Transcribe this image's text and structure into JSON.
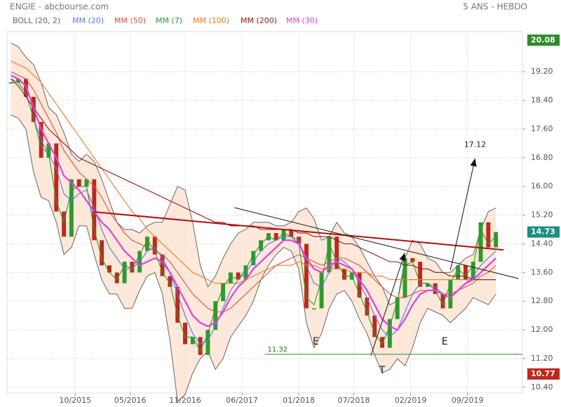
{
  "chart_data": {
    "type": "line",
    "title": "ENGIE - abcbourse.com",
    "subtitle": "5 ANS - HEBDO",
    "xlim": [
      -2,
      270
    ],
    "ylim": [
      10.24,
      20.32
    ],
    "xticks": [
      {
        "value": 34,
        "label": "10/2015"
      },
      {
        "value": 63,
        "label": "05/2016"
      },
      {
        "value": 92,
        "label": "11/2016"
      },
      {
        "value": 122,
        "label": "06/2017"
      },
      {
        "value": 152,
        "label": "01/2018"
      },
      {
        "value": 181,
        "label": "07/2018"
      },
      {
        "value": 211,
        "label": "02/2019"
      },
      {
        "value": 241,
        "label": "09/2019"
      }
    ],
    "yticks": [
      {
        "value": 10.4,
        "label": "10.40"
      },
      {
        "value": 11.2,
        "label": "11.20"
      },
      {
        "value": 12,
        "label": "12.00"
      },
      {
        "value": 12.8,
        "label": "12.80"
      },
      {
        "value": 13.6,
        "label": "13.60"
      },
      {
        "value": 14.4,
        "label": "14.40"
      },
      {
        "value": 15.2,
        "label": "15.20"
      },
      {
        "value": 16,
        "label": "16.00"
      },
      {
        "value": 16.8,
        "label": "16.80"
      },
      {
        "value": 17.6,
        "label": "17.60"
      },
      {
        "value": 18.4,
        "label": "18.40"
      },
      {
        "value": 19.2,
        "label": "19.20"
      }
    ],
    "grid": true,
    "x": [
      0,
      4,
      8,
      12,
      16,
      20,
      24,
      28,
      32,
      36,
      40,
      44,
      48,
      52,
      56,
      60,
      64,
      68,
      72,
      76,
      80,
      84,
      88,
      92,
      96,
      100,
      104,
      108,
      112,
      116,
      120,
      124,
      128,
      132,
      136,
      140,
      144,
      148,
      152,
      156,
      160,
      164,
      168,
      172,
      176,
      180,
      184,
      188,
      192,
      196,
      200,
      204,
      208,
      212,
      216,
      220,
      224,
      228,
      232,
      236,
      240,
      244,
      248,
      252,
      256
    ],
    "price": {
      "up_color": "#2e9a2e",
      "down_color": "#c0281e",
      "values": [
        18.9,
        19.0,
        18.5,
        17.8,
        16.8,
        17.2,
        15.3,
        14.6,
        16.2,
        16.0,
        16.2,
        14.5,
        13.8,
        13.6,
        13.3,
        13.9,
        13.6,
        14.2,
        14.6,
        14.1,
        13.5,
        13.2,
        12.2,
        11.6,
        11.8,
        11.3,
        12.0,
        12.8,
        13.3,
        13.6,
        13.4,
        13.8,
        14.2,
        14.5,
        14.7,
        14.5,
        14.8,
        14.6,
        14.4,
        12.6,
        12.6,
        13.6,
        14.6,
        13.7,
        13.4,
        13.6,
        12.9,
        12.4,
        11.8,
        11.5,
        12.3,
        12.9,
        14.0,
        13.9,
        13.2,
        13.3,
        13.0,
        12.6,
        13.4,
        13.8,
        13.4,
        13.9,
        15.0,
        14.3,
        14.73
      ]
    },
    "bollinger": {
      "name": "BOLL (20, 2)",
      "color": "#666666",
      "fill": "#fde2cf",
      "upper": [
        20.0,
        19.9,
        19.6,
        19.4,
        18.9,
        18.2,
        18.0,
        17.5,
        16.9,
        16.7,
        16.9,
        16.7,
        16.2,
        15.6,
        15.0,
        14.8,
        14.8,
        14.7,
        14.9,
        15.0,
        15.0,
        15.5,
        16.0,
        15.9,
        15.0,
        13.8,
        13.2,
        13.5,
        14.0,
        14.4,
        14.7,
        14.8,
        15.0,
        15.0,
        15.0,
        14.9,
        14.9,
        15.0,
        15.3,
        15.4,
        15.1,
        14.5,
        14.6,
        15.0,
        14.7,
        14.6,
        14.3,
        13.9,
        13.5,
        13.2,
        12.7,
        12.8,
        14.0,
        14.5,
        14.4,
        14.0,
        13.9,
        13.6,
        13.6,
        13.8,
        14.0,
        14.1,
        14.8,
        15.3,
        15.4
      ],
      "lower": [
        18.0,
        17.9,
        17.6,
        16.4,
        15.7,
        15.6,
        15.0,
        14.1,
        14.3,
        14.9,
        14.9,
        14.1,
        13.4,
        13.0,
        13.0,
        12.6,
        12.6,
        13.1,
        13.5,
        13.6,
        13.0,
        11.7,
        10.0,
        10.2,
        10.8,
        11.2,
        11.4,
        10.9,
        11.2,
        11.8,
        12.1,
        12.4,
        12.8,
        13.4,
        13.8,
        14.1,
        14.3,
        14.2,
        13.7,
        12.2,
        11.5,
        11.9,
        12.6,
        13.0,
        13.1,
        12.8,
        12.3,
        11.9,
        11.3,
        10.8,
        10.9,
        11.2,
        11.0,
        11.5,
        12.2,
        12.6,
        12.5,
        12.4,
        12.2,
        12.4,
        12.6,
        12.9,
        12.8,
        12.7,
        13.0
      ]
    },
    "series": [
      {
        "name": "MM (20)",
        "color": "#4a7fe0",
        "values": [
          19.0,
          18.9,
          18.6,
          17.9,
          17.3,
          16.9,
          16.5,
          15.8,
          15.6,
          15.8,
          15.9,
          15.4,
          14.8,
          14.3,
          14.0,
          13.7,
          13.7,
          13.9,
          14.2,
          14.3,
          14.0,
          13.6,
          13.0,
          12.4,
          11.9,
          11.6,
          11.7,
          12.1,
          12.6,
          13.1,
          13.4,
          13.6,
          13.9,
          14.2,
          14.4,
          14.5,
          14.6,
          14.6,
          14.5,
          13.8,
          13.3,
          13.2,
          13.6,
          14.0,
          13.9,
          13.7,
          13.3,
          12.9,
          12.4,
          12.0,
          11.8,
          12.0,
          12.5,
          13.0,
          13.3,
          13.3,
          13.2,
          13.0,
          12.9,
          13.1,
          13.3,
          13.5,
          13.8,
          14.0,
          14.2
        ]
      },
      {
        "name": "MM (50)",
        "color": "#e84a4a",
        "values": [
          19.2,
          19.1,
          19.0,
          18.7,
          18.3,
          17.9,
          17.5,
          17.0,
          16.7,
          16.4,
          16.2,
          16.0,
          15.7,
          15.3,
          15.0,
          14.7,
          14.5,
          14.4,
          14.3,
          14.2,
          14.1,
          13.9,
          13.6,
          13.3,
          13.0,
          12.8,
          12.6,
          12.5,
          12.5,
          12.6,
          12.8,
          13.0,
          13.2,
          13.4,
          13.6,
          13.8,
          13.9,
          14.0,
          14.1,
          14.0,
          13.9,
          13.8,
          13.9,
          14.0,
          14.0,
          13.9,
          13.8,
          13.6,
          13.4,
          13.2,
          13.0,
          12.9,
          12.9,
          13.0,
          13.1,
          13.1,
          13.1,
          13.0,
          13.0,
          13.1,
          13.2,
          13.3,
          13.5,
          13.6,
          13.8
        ]
      },
      {
        "name": "MM (7)",
        "color": "#2a9a2a",
        "values": [
          18.9,
          18.9,
          18.6,
          17.9,
          17.1,
          16.9,
          15.6,
          15.0,
          15.9,
          16.0,
          16.0,
          14.8,
          14.0,
          13.6,
          13.4,
          13.8,
          13.7,
          14.1,
          14.5,
          14.2,
          13.6,
          13.3,
          12.4,
          11.8,
          11.8,
          11.4,
          11.9,
          12.6,
          13.2,
          13.5,
          13.4,
          13.7,
          14.1,
          14.4,
          14.6,
          14.5,
          14.7,
          14.6,
          14.4,
          12.9,
          12.7,
          13.4,
          14.4,
          13.9,
          13.5,
          13.5,
          13.0,
          12.5,
          11.9,
          11.6,
          12.1,
          12.8,
          13.8,
          13.9,
          13.3,
          13.3,
          13.1,
          12.7,
          13.3,
          13.7,
          13.5,
          13.8,
          14.8,
          14.4,
          14.6
        ]
      },
      {
        "name": "MM (100)",
        "color": "#f07a20",
        "values": [
          19.5,
          19.4,
          19.3,
          19.1,
          18.9,
          18.6,
          18.3,
          18.0,
          17.7,
          17.4,
          17.1,
          16.8,
          16.5,
          16.2,
          15.9,
          15.6,
          15.3,
          15.1,
          14.8,
          14.6,
          14.4,
          14.2,
          14.0,
          13.8,
          13.6,
          13.5,
          13.4,
          13.3,
          13.3,
          13.3,
          13.3,
          13.4,
          13.5,
          13.6,
          13.7,
          13.8,
          13.8,
          13.8,
          13.9,
          13.8,
          13.8,
          13.7,
          13.7,
          13.7,
          13.7,
          13.6,
          13.6,
          13.6,
          13.5,
          13.5,
          13.4,
          13.4,
          13.4,
          13.4,
          13.4,
          13.4,
          13.4,
          13.4,
          13.4,
          13.4,
          13.4,
          13.4,
          13.4,
          13.4,
          13.4
        ]
      },
      {
        "name": "MM (200)",
        "color": "#8b1a1a",
        "values": [
          19.0,
          18.8,
          18.5,
          18.2,
          17.9,
          17.6,
          17.4,
          17.2,
          17.0,
          16.8,
          16.7,
          16.6,
          16.5,
          16.4,
          16.3,
          16.2,
          16.1,
          16.0,
          15.9,
          15.8,
          15.7,
          15.6,
          15.5,
          15.4,
          15.3,
          15.2,
          15.1,
          15.0,
          15.0,
          14.9,
          14.9,
          14.9,
          14.9,
          14.8,
          14.8,
          14.8,
          14.8,
          14.8,
          14.7,
          14.7,
          14.6,
          14.6,
          14.6,
          14.5,
          14.4,
          14.4,
          14.3,
          14.2,
          14.1,
          14.0,
          13.9,
          13.9,
          13.8,
          13.8,
          13.7,
          13.7,
          13.6,
          13.6,
          13.5,
          13.5,
          13.5,
          13.4,
          13.4,
          13.4,
          13.4
        ]
      },
      {
        "name": "MM (30)",
        "color": "#e040e0",
        "values": [
          19.1,
          19.0,
          18.8,
          18.2,
          17.6,
          17.2,
          16.8,
          16.3,
          16.1,
          15.9,
          15.6,
          15.3,
          15.0,
          14.8,
          14.5,
          14.2,
          14.0,
          13.8,
          13.9,
          14.0,
          13.9,
          13.6,
          13.2,
          12.8,
          12.4,
          12.2,
          12.1,
          12.2,
          12.5,
          12.9,
          13.2,
          13.4,
          13.7,
          13.9,
          14.1,
          14.3,
          14.5,
          14.5,
          14.4,
          14.0,
          13.7,
          13.6,
          13.8,
          13.9,
          13.8,
          13.7,
          13.4,
          13.1,
          12.7,
          12.3,
          12.1,
          12.0,
          12.3,
          12.7,
          13.0,
          13.1,
          13.1,
          13.0,
          12.9,
          13.1,
          13.3,
          13.4,
          13.6,
          13.8,
          14.0
        ]
      }
    ],
    "high": 20.08,
    "high_color": "#2e8b2e",
    "last": 14.73,
    "last_color": "#1e8e7e",
    "low": 10.77,
    "low_color": "#c0281e",
    "trendlines": [
      {
        "x": [
          44,
          260
        ],
        "y": [
          15.29,
          14.23
        ],
        "color": "#b01010"
      },
      {
        "x": [
          118,
          268
        ],
        "y": [
          15.41,
          13.43
        ],
        "color": "#111111"
      },
      {
        "x": [
          190,
          208
        ],
        "y": [
          11.28,
          14.15
        ],
        "color": "#111111"
      },
      {
        "x": [
          232,
          245
        ],
        "y": [
          13.67,
          16.78
        ],
        "color": "#111111"
      }
    ],
    "target": {
      "label": "17.12",
      "x": 245,
      "y": 17.12
    },
    "support": {
      "label": "11.32",
      "value": 11.32,
      "x": [
        134,
        270
      ],
      "color": "#2e8b2e"
    },
    "annotations": [
      {
        "text": "E",
        "x": 161,
        "y": 11.67
      },
      {
        "text": "T",
        "x": 196,
        "y": 10.87
      },
      {
        "text": "E",
        "x": 229,
        "y": 11.67
      }
    ]
  }
}
